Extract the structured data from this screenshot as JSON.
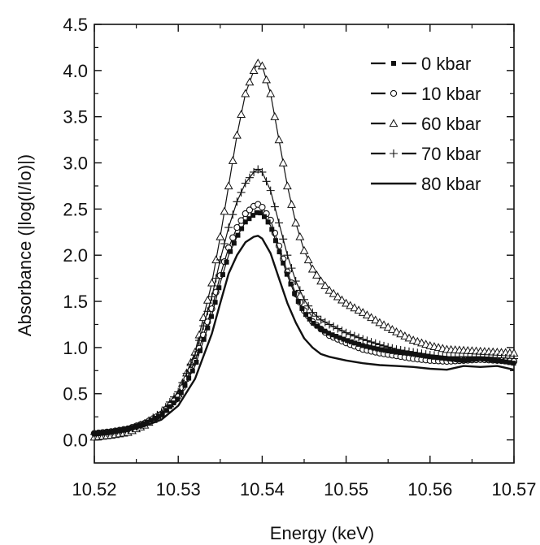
{
  "chart_data": {
    "type": "line",
    "title": "",
    "xlabel": "Energy (keV)",
    "ylabel": "Absorbance (|log(I/Io)|)",
    "xlim": [
      10.52,
      10.57
    ],
    "ylim": [
      -0.25,
      4.5
    ],
    "xticks": [
      "10.52",
      "10.53",
      "10.54",
      "10.55",
      "10.56",
      "10.57"
    ],
    "yticks": [
      "0.0",
      "0.5",
      "1.0",
      "1.5",
      "2.0",
      "2.5",
      "3.0",
      "3.5",
      "4.0",
      "4.5"
    ],
    "grid": false,
    "legend_position": "top-right",
    "x": [
      10.52,
      10.522,
      10.524,
      10.526,
      10.528,
      10.53,
      10.532,
      10.534,
      10.535,
      10.536,
      10.537,
      10.538,
      10.539,
      10.5395,
      10.54,
      10.541,
      10.542,
      10.543,
      10.544,
      10.545,
      10.546,
      10.547,
      10.548,
      10.55,
      10.552,
      10.554,
      10.556,
      10.558,
      10.56,
      10.562,
      10.564,
      10.566,
      10.568,
      10.57
    ],
    "series": [
      {
        "name": "0 kbar",
        "marker": "filled-square",
        "values": [
          0.07,
          0.09,
          0.12,
          0.18,
          0.27,
          0.45,
          0.8,
          1.35,
          1.7,
          2.0,
          2.2,
          2.36,
          2.44,
          2.47,
          2.45,
          2.32,
          2.05,
          1.78,
          1.55,
          1.38,
          1.27,
          1.2,
          1.15,
          1.08,
          1.02,
          0.98,
          0.95,
          0.93,
          0.9,
          0.88,
          0.86,
          0.88,
          0.86,
          0.83
        ]
      },
      {
        "name": "10 kbar",
        "marker": "open-circle",
        "values": [
          0.07,
          0.09,
          0.12,
          0.18,
          0.28,
          0.47,
          0.85,
          1.42,
          1.78,
          2.08,
          2.3,
          2.45,
          2.53,
          2.55,
          2.52,
          2.38,
          2.1,
          1.82,
          1.58,
          1.4,
          1.28,
          1.2,
          1.13,
          1.05,
          0.98,
          0.94,
          0.91,
          0.88,
          0.86,
          0.85,
          0.86,
          0.87,
          0.86,
          0.85
        ]
      },
      {
        "name": "60 kbar",
        "marker": "open-triangle",
        "values": [
          0.03,
          0.05,
          0.08,
          0.16,
          0.28,
          0.5,
          0.95,
          1.7,
          2.2,
          2.75,
          3.3,
          3.75,
          4.0,
          4.08,
          4.05,
          3.75,
          3.25,
          2.75,
          2.35,
          2.05,
          1.85,
          1.72,
          1.62,
          1.48,
          1.38,
          1.27,
          1.17,
          1.08,
          1.02,
          0.98,
          0.97,
          0.96,
          0.95,
          0.94
        ]
      },
      {
        "name": "70 kbar",
        "marker": "plus",
        "values": [
          0.06,
          0.08,
          0.11,
          0.18,
          0.3,
          0.52,
          0.92,
          1.55,
          1.95,
          2.3,
          2.58,
          2.78,
          2.9,
          2.93,
          2.9,
          2.7,
          2.35,
          2.0,
          1.72,
          1.52,
          1.38,
          1.3,
          1.25,
          1.16,
          1.09,
          1.03,
          0.98,
          0.95,
          0.92,
          0.9,
          0.9,
          0.9,
          0.89,
          0.88
        ]
      },
      {
        "name": "80 kbar",
        "marker": "none",
        "values": [
          0.05,
          0.07,
          0.1,
          0.15,
          0.22,
          0.37,
          0.66,
          1.15,
          1.48,
          1.8,
          2.0,
          2.14,
          2.2,
          2.21,
          2.18,
          2.02,
          1.75,
          1.48,
          1.27,
          1.1,
          1.0,
          0.93,
          0.9,
          0.86,
          0.83,
          0.81,
          0.8,
          0.79,
          0.77,
          0.76,
          0.8,
          0.79,
          0.8,
          0.76
        ]
      }
    ]
  }
}
